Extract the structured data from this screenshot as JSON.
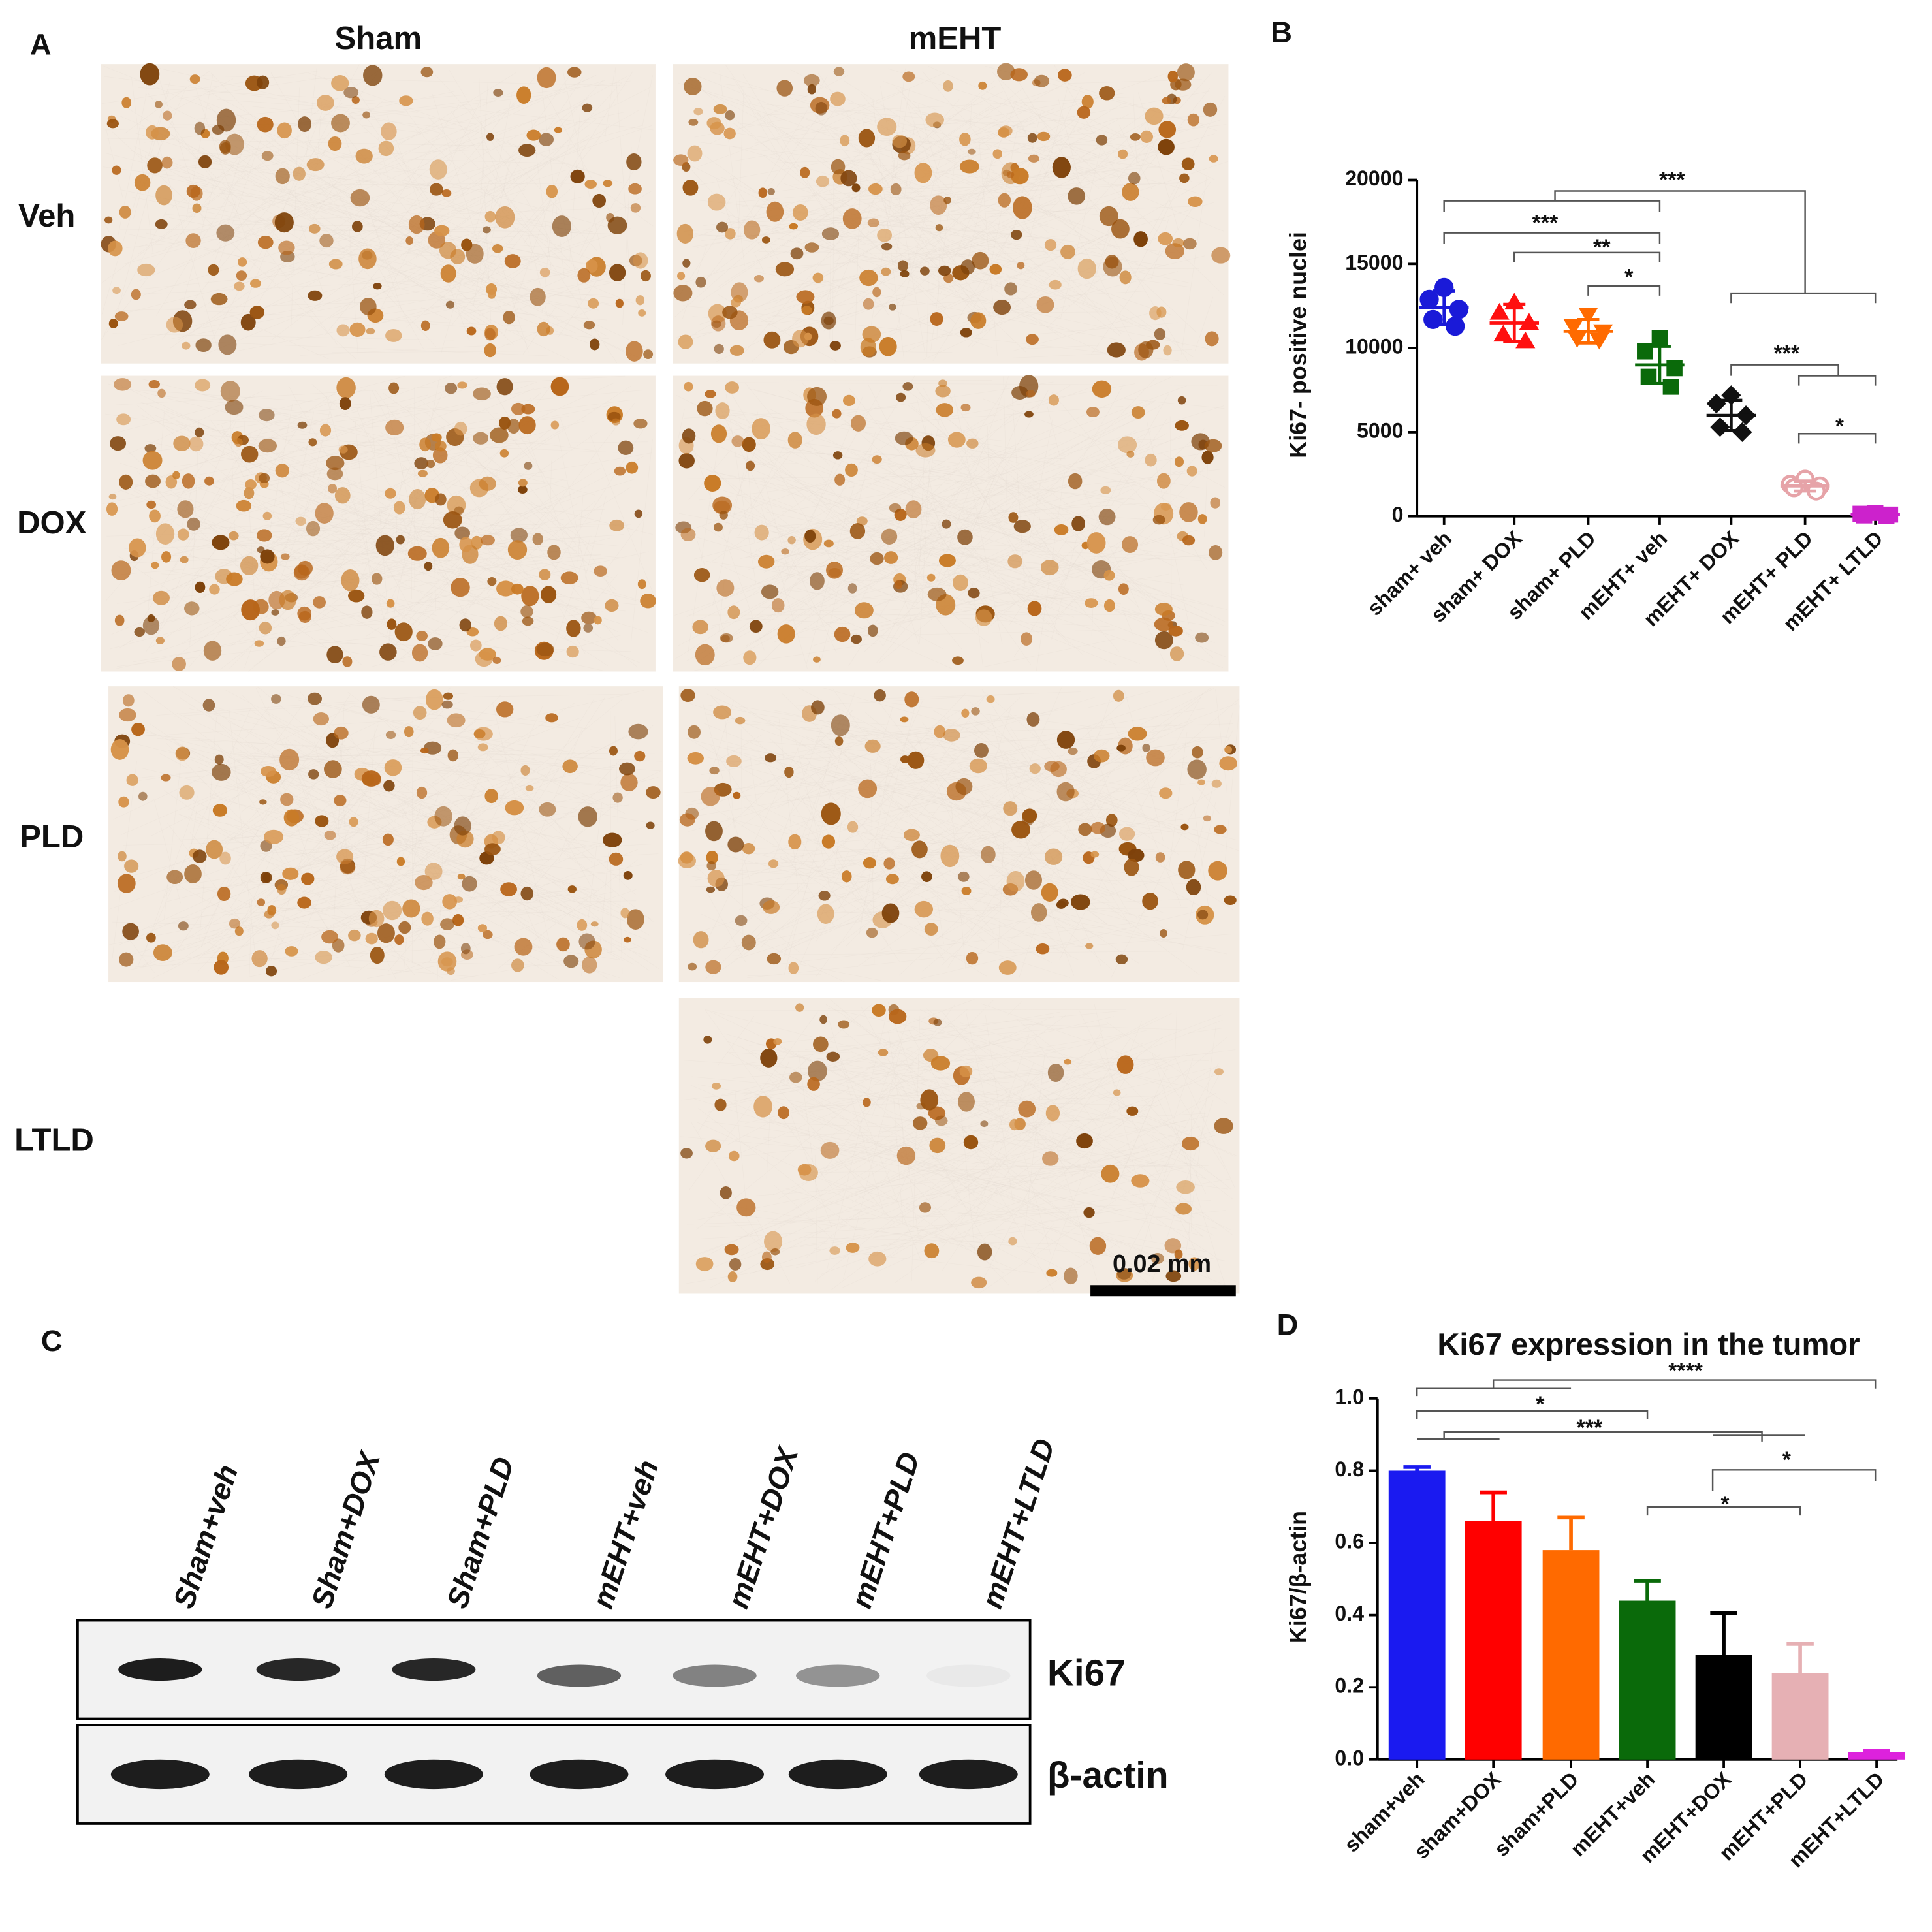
{
  "panel_a": {
    "label": "A",
    "columns": [
      "Sham",
      "mEHT"
    ],
    "rows": [
      "Veh",
      "DOX",
      "PLD",
      "LTLD"
    ],
    "scale_bar": "0.02 mm"
  },
  "panel_c": {
    "label": "C",
    "lanes": [
      "Sham+veh",
      "Sham+DOX",
      "Sham+PLD",
      "mEHT+veh",
      "mEHT+DOX",
      "mEHT+PLD",
      "mEHT+LTLD"
    ],
    "bands": [
      "Ki67",
      "β-actin"
    ]
  },
  "chart_data": [
    {
      "type": "dotplot",
      "panel_label": "B",
      "y_label": "Ki67- positive nuclei",
      "categories": [
        "sham+ veh",
        "sham+ DOX",
        "sham+ PLD",
        "mEHT+ veh",
        "mEHT+ DOX",
        "mEHT+ PLD",
        "mEHT+ LTLD"
      ],
      "groups": [
        {
          "color": "#1a1ad8",
          "marker": "circle",
          "points": [
            13600,
            12900,
            12300,
            11700,
            11300
          ],
          "mean": 12400,
          "sd": 1000
        },
        {
          "color": "#ff1010",
          "marker": "triangle",
          "points": [
            12700,
            12100,
            11500,
            10800,
            10400
          ],
          "mean": 11500,
          "sd": 1100
        },
        {
          "color": "#ff6a00",
          "marker": "triangle-down",
          "points": [
            12000,
            11300,
            11000,
            10600,
            10500
          ],
          "mean": 11000,
          "sd": 700
        },
        {
          "color": "#0a6a0a",
          "marker": "square",
          "points": [
            10600,
            9800,
            8800,
            8300,
            7700
          ],
          "mean": 9000,
          "sd": 1100
        },
        {
          "color": "#111111",
          "marker": "diamond",
          "points": [
            7200,
            6700,
            6000,
            5300,
            5000
          ],
          "mean": 6000,
          "sd": 900
        },
        {
          "color": "#e6a3a8",
          "marker": "circle-open",
          "points": [
            2200,
            1900,
            1800,
            1700,
            1500
          ],
          "mean": 1800,
          "sd": 300
        },
        {
          "color": "#cc22cc",
          "marker": "square",
          "points": [
            200,
            150,
            100,
            50,
            0
          ],
          "mean": 100,
          "sd": 100
        }
      ],
      "ylim": [
        0,
        20000
      ],
      "yticks": [
        0,
        5000,
        10000,
        15000,
        20000
      ],
      "annotations": [
        "***",
        "***",
        "**",
        "*",
        "***",
        "*"
      ]
    },
    {
      "type": "bar",
      "panel_label": "D",
      "title": "Ki67 expression in the tumor",
      "y_label": "Ki67/β-actin",
      "categories": [
        "sham+veh",
        "sham+DOX",
        "sham+PLD",
        "mEHT+veh",
        "mEHT+DOX",
        "mEHT+PLD",
        "mEHT+LTLD"
      ],
      "values": [
        0.8,
        0.66,
        0.58,
        0.44,
        0.29,
        0.24,
        0.02
      ],
      "errors": [
        0.01,
        0.08,
        0.09,
        0.055,
        0.115,
        0.08,
        0.005
      ],
      "colors": [
        "#1a1af0",
        "#ff0000",
        "#ff6a00",
        "#0a6a0a",
        "#000000",
        "#e6b0b4",
        "#dd22dd"
      ],
      "ylim": [
        0,
        1
      ],
      "yticks": [
        {
          "value": 0,
          "label": "0.0"
        },
        0.2,
        0.4,
        0.6,
        0.8,
        {
          "value": 1,
          "label": "1.0"
        }
      ],
      "annotations": [
        "****",
        "*",
        "***",
        "*",
        "*"
      ]
    }
  ]
}
